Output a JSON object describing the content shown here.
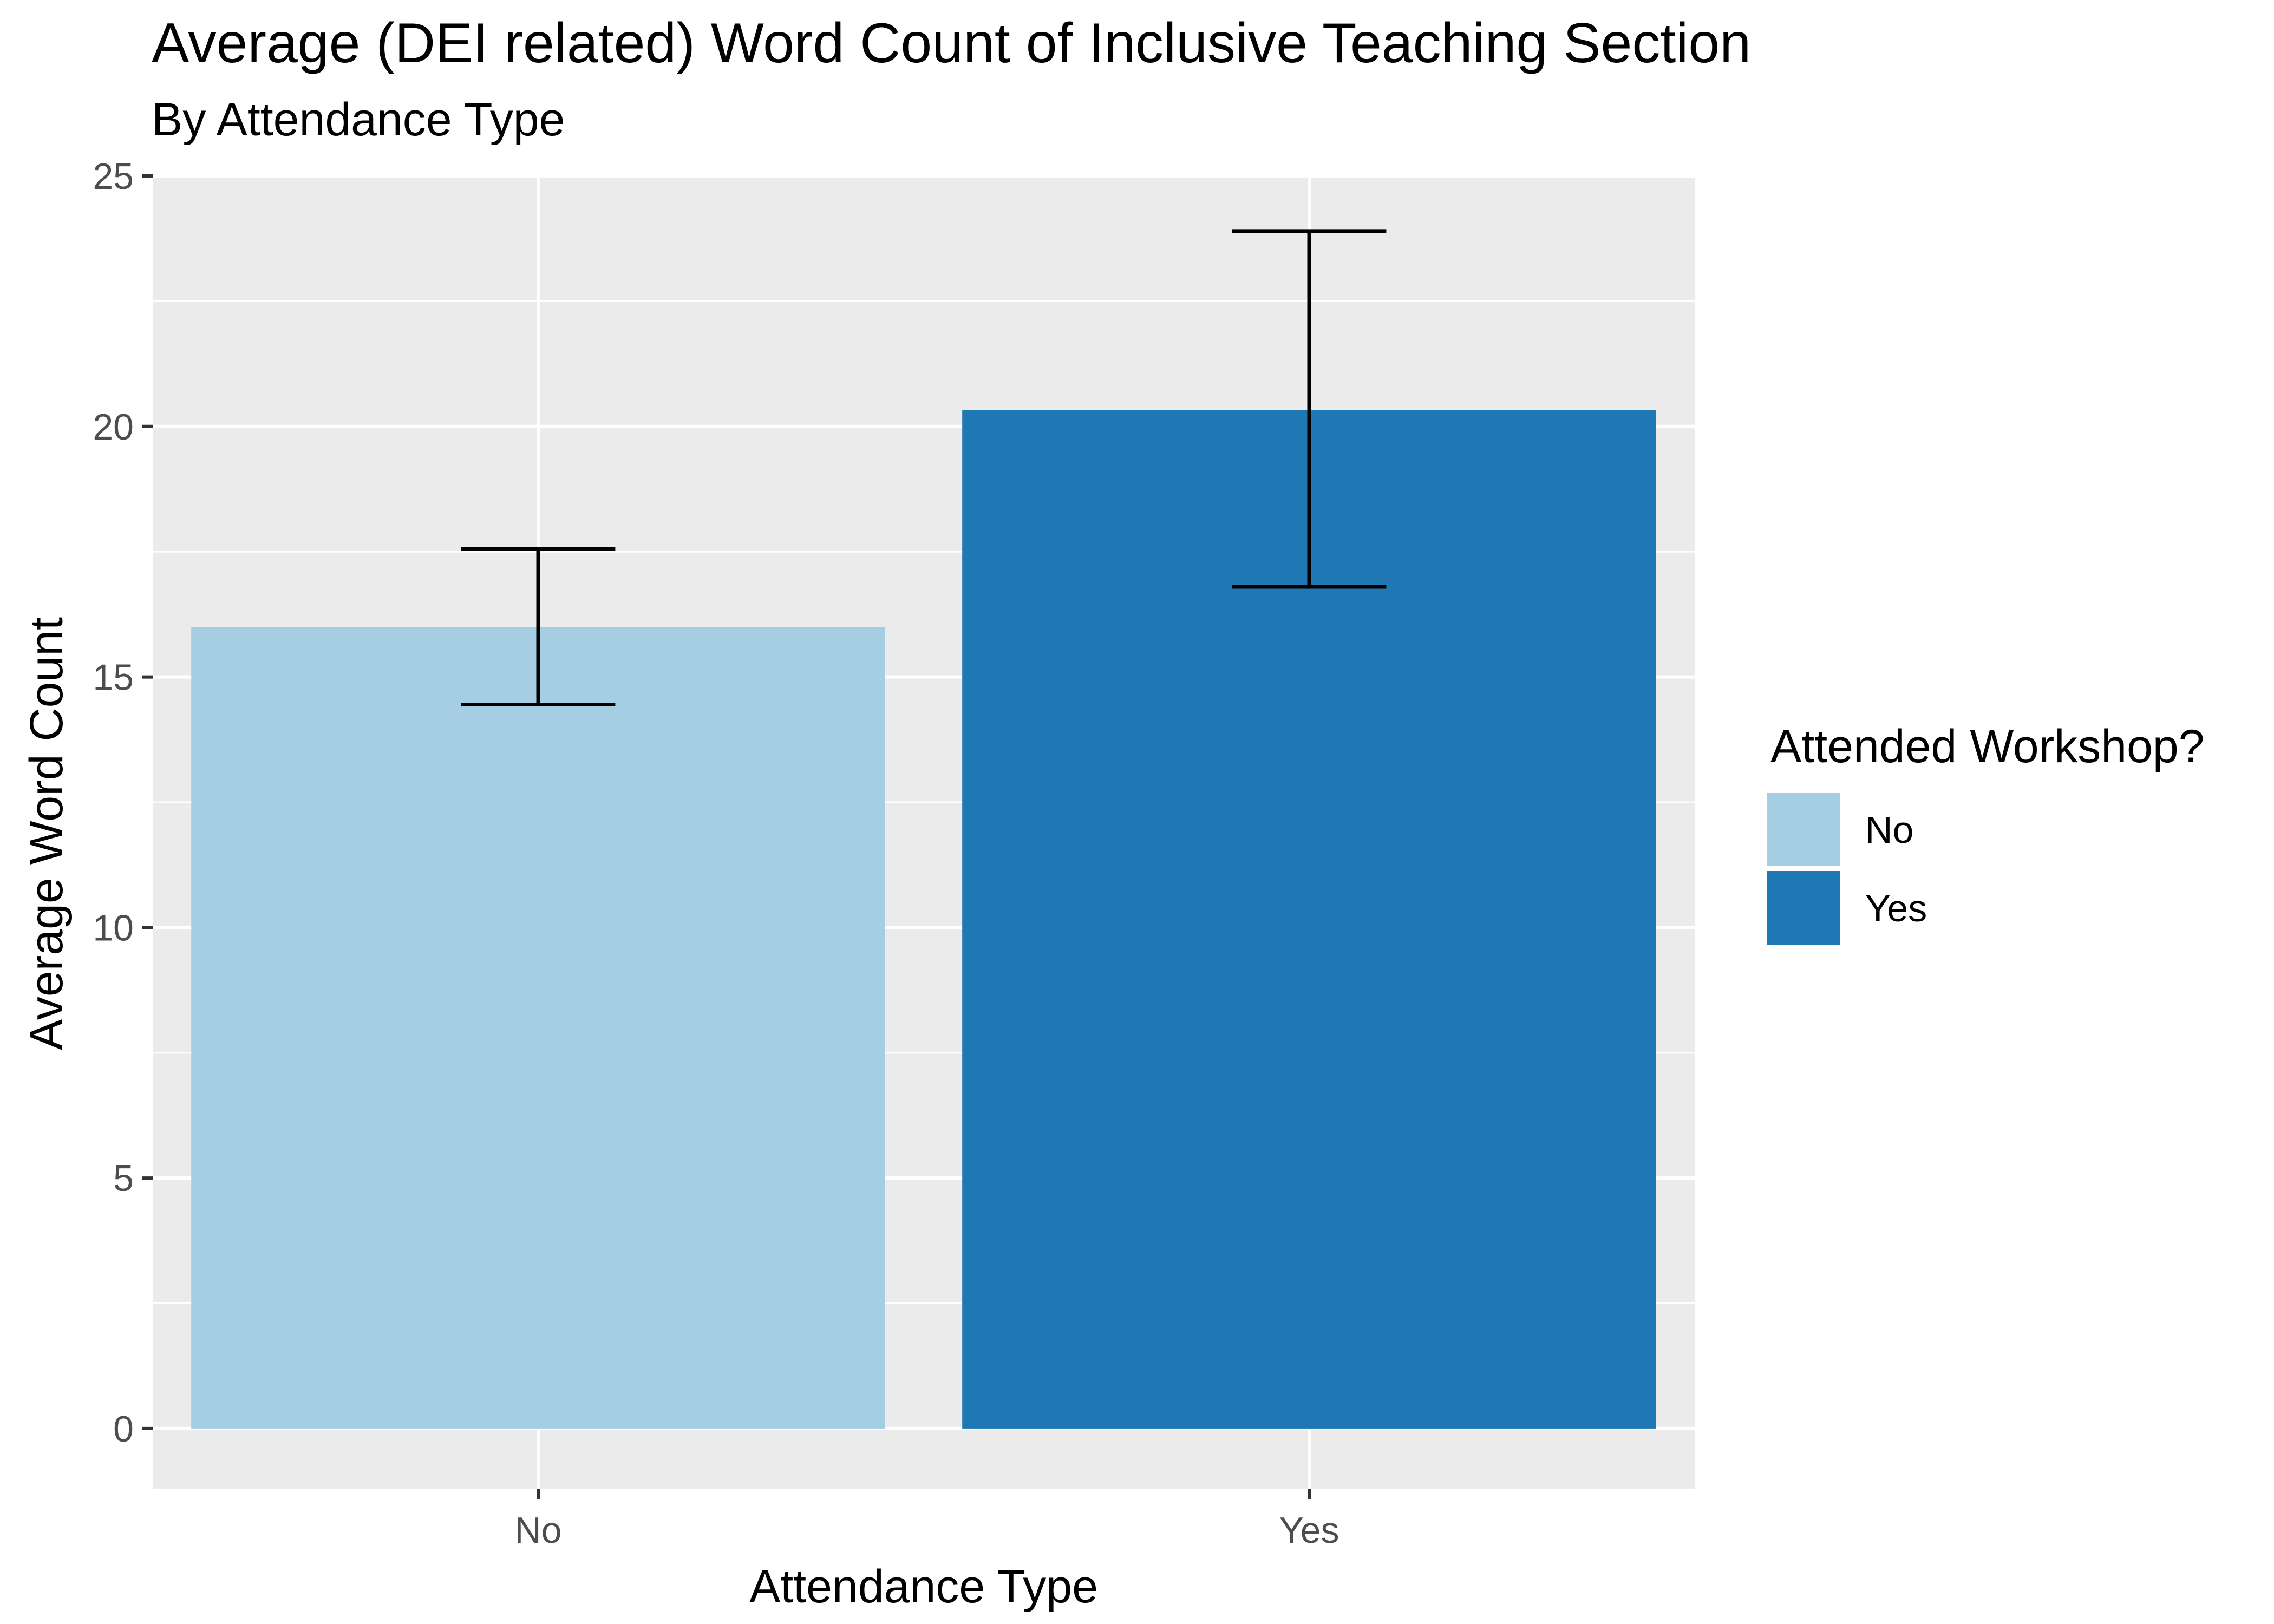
{
  "chart_data": {
    "type": "bar",
    "title": "Average (DEI related) Word Count of Inclusive Teaching Section",
    "subtitle": "By Attendance Type",
    "xlabel": "Attendance Type",
    "ylabel": "Average Word Count",
    "categories": [
      "No",
      "Yes"
    ],
    "values": [
      16.0,
      20.33
    ],
    "error_bars": [
      {
        "low": 14.45,
        "high": 17.55
      },
      {
        "low": 16.8,
        "high": 23.9
      }
    ],
    "ylim": [
      -1.2,
      25
    ],
    "yticks": [
      0,
      5,
      10,
      15,
      20,
      25
    ],
    "y_tick_labels": [
      "0",
      "5",
      "10",
      "15",
      "20",
      "25"
    ],
    "grid": true,
    "colors": [
      "#A6CEE3",
      "#1F78B4"
    ],
    "panel_background": "#EBEBEB",
    "legend": {
      "title": "Attended Workshop?",
      "position": "right",
      "entries": [
        "No",
        "Yes"
      ]
    }
  }
}
